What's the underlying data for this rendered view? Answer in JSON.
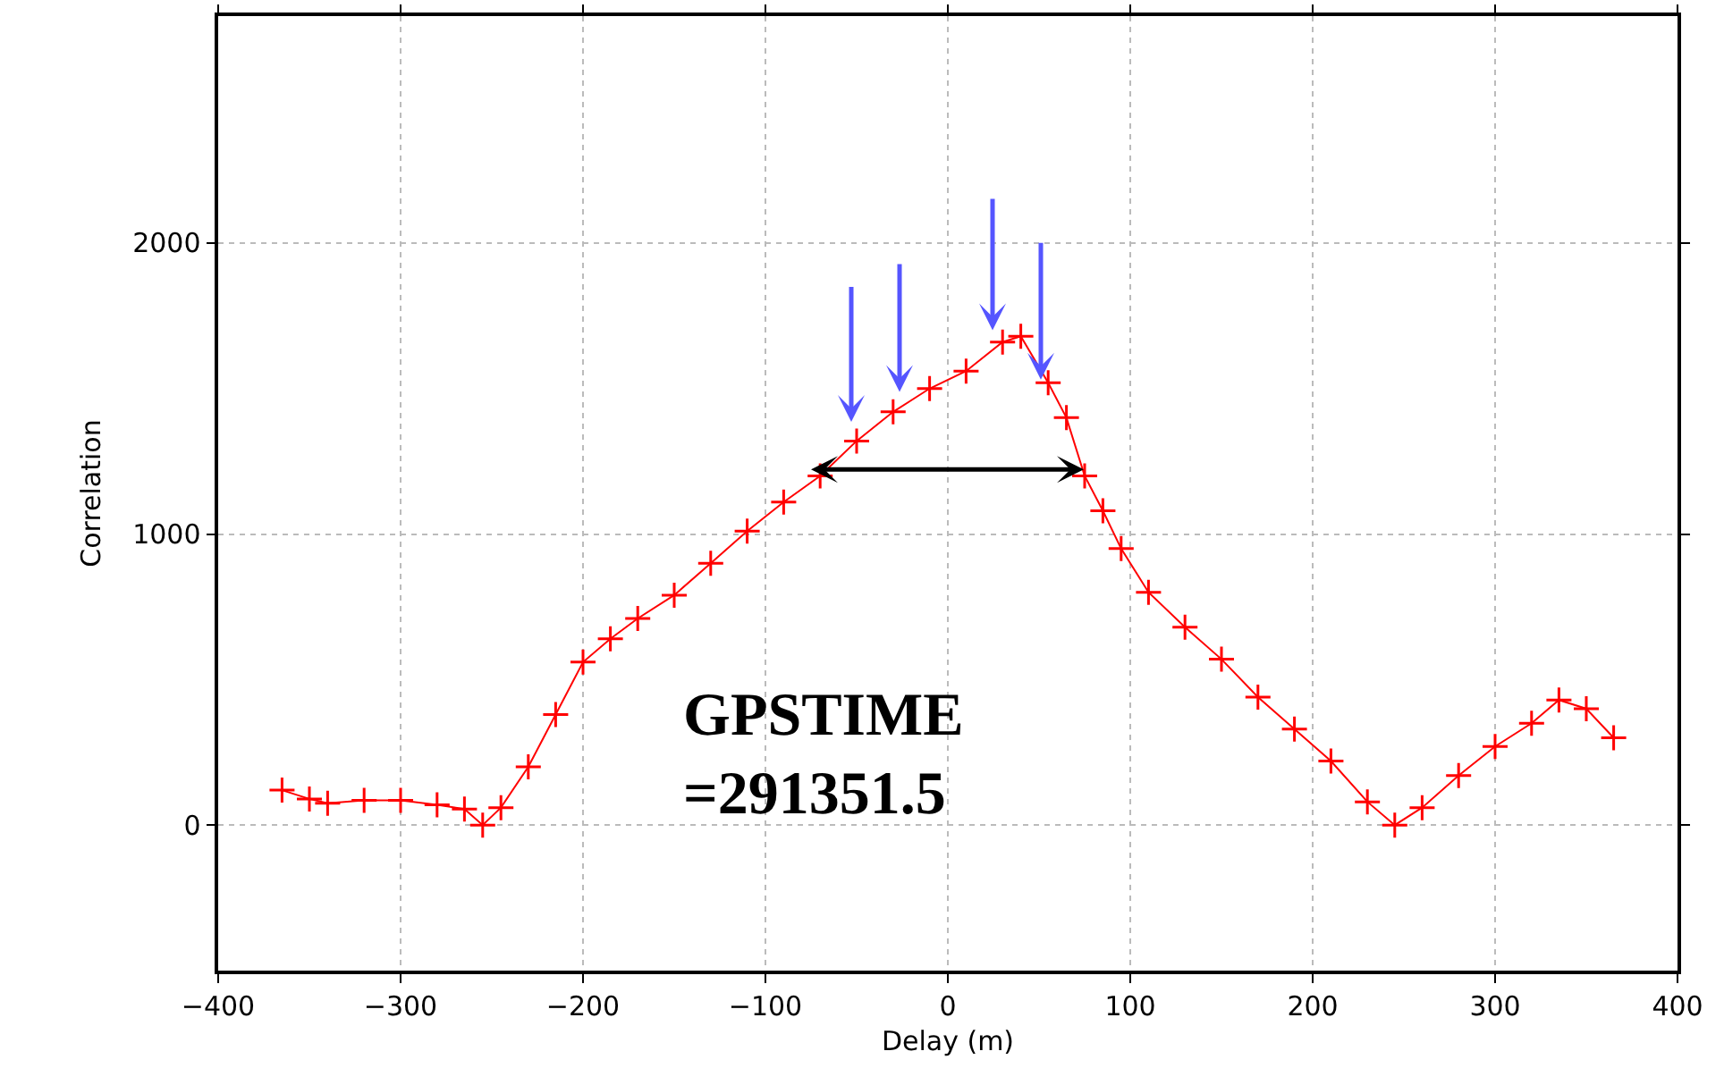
{
  "chart_data": {
    "type": "line",
    "xlabel": "Delay (m)",
    "ylabel": "Correlation",
    "xlim": [
      -400,
      400
    ],
    "xticks": [
      -400,
      -300,
      -200,
      -100,
      0,
      100,
      200,
      300,
      400
    ],
    "ylim": [
      -500,
      2780
    ],
    "yticks": [
      0,
      1000,
      2000
    ],
    "grid": true,
    "series": [
      {
        "color": "#ff0000",
        "marker": "cross",
        "x": [
          -365,
          -350,
          -340,
          -320,
          -300,
          -280,
          -265,
          -255,
          -245,
          -230,
          -215,
          -200,
          -185,
          -170,
          -150,
          -130,
          -110,
          -90,
          -70,
          -50,
          -30,
          -10,
          10,
          30,
          40,
          55,
          65,
          75,
          85,
          95,
          110,
          130,
          150,
          170,
          190,
          210,
          230,
          245,
          260,
          280,
          300,
          320,
          335,
          350,
          365
        ],
        "values": [
          120,
          90,
          75,
          85,
          85,
          70,
          55,
          0,
          60,
          200,
          380,
          560,
          640,
          710,
          790,
          900,
          1010,
          1110,
          1200,
          1320,
          1420,
          1500,
          1560,
          1660,
          1680,
          1520,
          1400,
          1200,
          1080,
          950,
          800,
          680,
          570,
          440,
          330,
          220,
          80,
          0,
          60,
          170,
          270,
          350,
          430,
          400,
          300
        ]
      }
    ],
    "annotations": [
      "GPSTIME\n=291351.5"
    ]
  }
}
